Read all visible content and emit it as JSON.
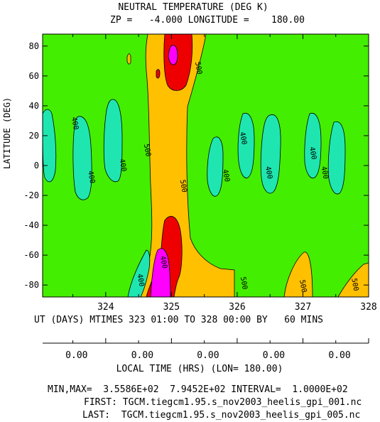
{
  "chart_data": {
    "type": "contour",
    "title": "NEUTRAL TEMPERATURE (DEG K)",
    "subtitle": "ZP =   -4.000 LONGITUDE =    180.00",
    "ylabel": "LATITUDE (DEG)",
    "xlabel": "UT (DAYS) MTIMES 323 01:00 TO 328 00:00 BY   60 MINS",
    "x_ticks": [
      "324",
      "325",
      "326",
      "327",
      "328"
    ],
    "x_tick_values": [
      324,
      325,
      326,
      327,
      328
    ],
    "xlim": [
      323.04,
      328.0
    ],
    "y_ticks": [
      "80",
      "60",
      "40",
      "20",
      "0",
      "-20",
      "-40",
      "-60",
      "-80"
    ],
    "y_tick_values": [
      80,
      60,
      40,
      20,
      0,
      -20,
      -40,
      -60,
      -80
    ],
    "ylim": [
      -88,
      88
    ],
    "contour_labels": [
      {
        "text": "400",
        "x": 323.5,
        "y": 28
      },
      {
        "text": "400",
        "x": 323.75,
        "y": -8
      },
      {
        "text": "400",
        "x": 324.23,
        "y": 0
      },
      {
        "text": "400",
        "x": 324.5,
        "y": -77
      },
      {
        "text": "400",
        "x": 324.85,
        "y": -65
      },
      {
        "text": "500",
        "x": 324.6,
        "y": 10
      },
      {
        "text": "500",
        "x": 325.15,
        "y": -14
      },
      {
        "text": "500",
        "x": 325.38,
        "y": 65
      },
      {
        "text": "500",
        "x": 326.07,
        "y": -79
      },
      {
        "text": "500",
        "x": 326.97,
        "y": -81
      },
      {
        "text": "500",
        "x": 327.76,
        "y": -80
      },
      {
        "text": "400",
        "x": 325.8,
        "y": -7
      },
      {
        "text": "400",
        "x": 326.06,
        "y": 18
      },
      {
        "text": "400",
        "x": 326.45,
        "y": -5
      },
      {
        "text": "400",
        "x": 327.12,
        "y": 8
      },
      {
        "text": "400",
        "x": 327.3,
        "y": -5
      }
    ],
    "colors": {
      "lt400": "#1fe6b0",
      "b400_500": "#44ee00",
      "b500_600": "#ffc000",
      "b600_700": "#ee0000",
      "gt700": "#ff00ff"
    }
  },
  "local_time": {
    "title": "LOCAL TIME (HRS) (LON= 180.00)",
    "tick_labels": [
      "0.00",
      "0.00",
      "0.00",
      "0.00",
      "0.00"
    ]
  },
  "footer": {
    "minmax": "MIN,MAX=  3.5586E+02  7.9452E+02 INTERVAL=  1.0000E+02",
    "first": "FIRST: TGCM.tiegcm1.95.s_nov2003_heelis_gpi_001.nc",
    "last": "LAST:  TGCM.tiegcm1.95.s_nov2003_heelis_gpi_005.nc"
  }
}
